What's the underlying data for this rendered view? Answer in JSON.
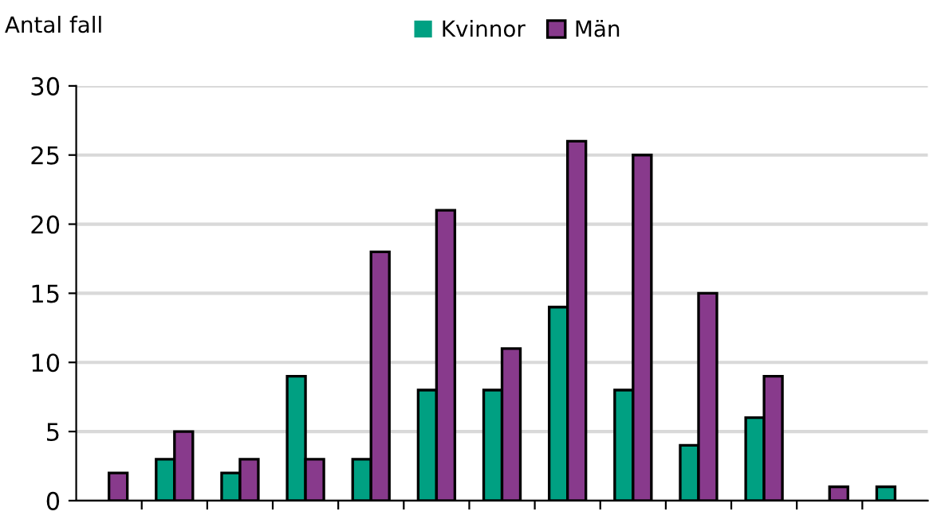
{
  "chart_data": {
    "type": "bar",
    "ylabel": "Antal fall",
    "categories": [
      null,
      null,
      null,
      null,
      null,
      null,
      null,
      null,
      null,
      null,
      null,
      null,
      null
    ],
    "series": [
      {
        "name": "Kvinnor",
        "color": "#00a082",
        "values": [
          0,
          3,
          2,
          9,
          3,
          8,
          8,
          14,
          8,
          4,
          6,
          0,
          1
        ]
      },
      {
        "name": "Män",
        "color": "#883a8c",
        "values": [
          2,
          5,
          3,
          3,
          18,
          21,
          11,
          26,
          25,
          15,
          9,
          1,
          null
        ]
      }
    ],
    "ylim": [
      0,
      30
    ],
    "yticks": [
      0,
      5,
      10,
      15,
      20,
      25,
      30
    ],
    "grid": "y",
    "legend": "top"
  }
}
